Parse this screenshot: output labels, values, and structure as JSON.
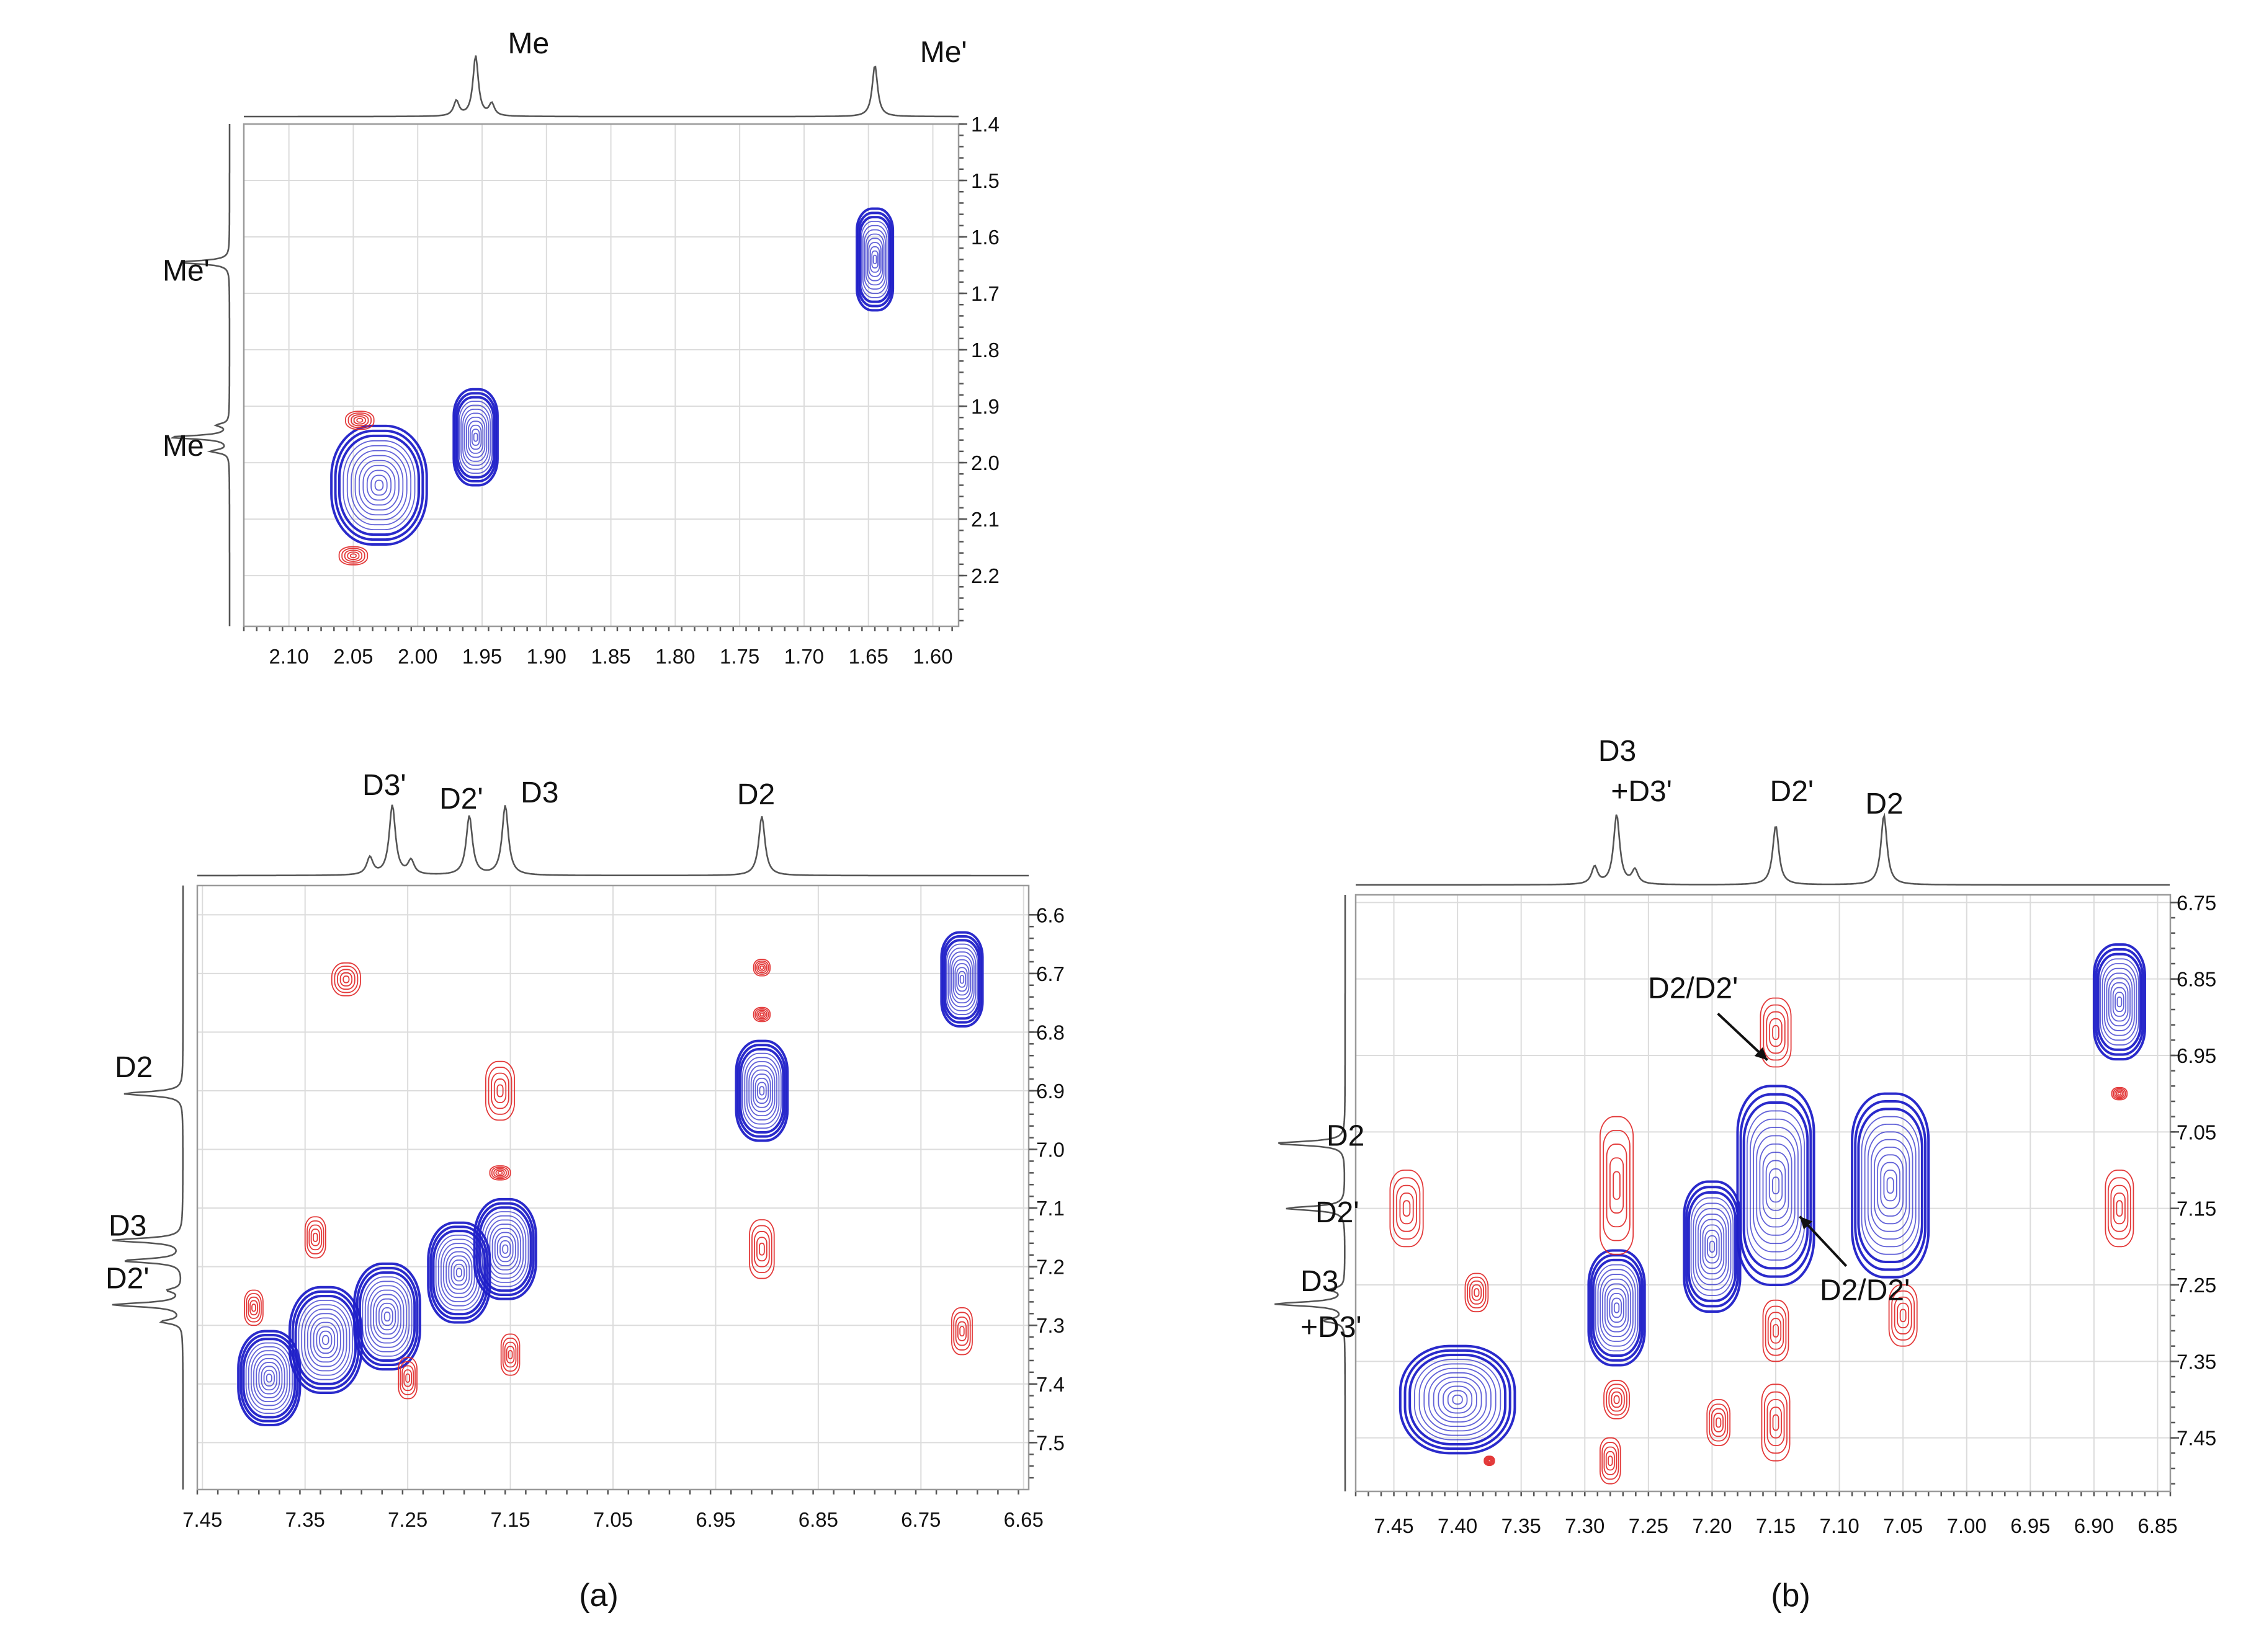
{
  "colors": {
    "positive": "#1f1fc8",
    "negative": "#e02424",
    "trace": "#555555",
    "grid": "#dcdcdc"
  },
  "chart_data": [
    {
      "id": "top",
      "type": "heatmap",
      "subtype": "2D NMR contour map (EXSY/NOESY)",
      "x": {
        "range": [
          2.135,
          1.58
        ],
        "ticks": [
          2.1,
          2.05,
          2.0,
          1.95,
          1.9,
          1.85,
          1.8,
          1.75,
          1.7,
          1.65,
          1.6
        ],
        "tick_labels": [
          "2.10",
          "2.05",
          "2.00",
          "1.95",
          "1.90",
          "1.85",
          "1.80",
          "1.75",
          "1.70",
          "1.65",
          "1.60"
        ]
      },
      "y": {
        "range": [
          1.4,
          2.29
        ],
        "ticks": [
          1.4,
          1.5,
          1.6,
          1.7,
          1.8,
          1.9,
          2.0,
          2.1,
          2.2
        ],
        "tick_labels": [
          "1.4",
          "1.5",
          "1.6",
          "1.7",
          "1.8",
          "1.9",
          "2.0",
          "2.1",
          "2.2"
        ]
      },
      "projection_peaks": [
        {
          "label": "Me",
          "shift": 1.955
        },
        {
          "label": "Me'",
          "shift": 1.645
        }
      ],
      "top_annotations": [
        {
          "text": "Me",
          "x": 1.93
        },
        {
          "text": "Me'",
          "x": 1.61
        }
      ],
      "left_annotations": [
        {
          "text": "Me'",
          "y": 1.66
        },
        {
          "text": "Me",
          "y": 1.97
        }
      ],
      "contours": [
        {
          "sign": "positive",
          "x": 1.645,
          "y": 1.64,
          "rx": 0.014,
          "ry": 0.09
        },
        {
          "sign": "positive",
          "x": 1.955,
          "y": 1.955,
          "rx": 0.017,
          "ry": 0.085
        },
        {
          "sign": "positive",
          "x": 2.03,
          "y": 2.04,
          "rx": 0.037,
          "ry": 0.105
        },
        {
          "sign": "negative",
          "x": 2.045,
          "y": 1.925,
          "rx": 0.011,
          "ry": 0.016
        },
        {
          "sign": "negative",
          "x": 2.05,
          "y": 2.165,
          "rx": 0.011,
          "ry": 0.016
        }
      ]
    },
    {
      "id": "a",
      "caption": "(a)",
      "type": "heatmap",
      "subtype": "2D NMR contour map (EXSY/NOESY)",
      "x": {
        "range": [
          7.455,
          6.645
        ],
        "ticks": [
          7.45,
          7.35,
          7.25,
          7.15,
          7.05,
          6.95,
          6.85,
          6.75,
          6.65
        ],
        "tick_labels": [
          "7.45",
          "7.35",
          "7.25",
          "7.15",
          "7.05",
          "6.95",
          "6.85",
          "6.75",
          "6.65"
        ]
      },
      "y": {
        "range": [
          6.55,
          7.58
        ],
        "ticks": [
          6.6,
          6.7,
          6.8,
          6.9,
          7.0,
          7.1,
          7.2,
          7.3,
          7.4,
          7.5
        ],
        "tick_labels": [
          "6.6",
          "6.7",
          "6.8",
          "6.9",
          "7.0",
          "7.1",
          "7.2",
          "7.3",
          "7.4",
          "7.5"
        ]
      },
      "projection_peaks": [
        {
          "label": "D3'",
          "shift": 7.265
        },
        {
          "label": "D2'",
          "shift": 7.19
        },
        {
          "label": "D3",
          "shift": 7.155
        },
        {
          "label": "D2",
          "shift": 6.905
        }
      ],
      "top_annotations": [
        {
          "text": "D3'",
          "x": 7.27
        },
        {
          "text": "D2'",
          "x": 7.195
        },
        {
          "text": "D3",
          "x": 7.14
        },
        {
          "text": "D2",
          "x": 6.905
        }
      ],
      "left_annotations": [
        {
          "text": "D2",
          "y": 6.86
        },
        {
          "text": "D3",
          "y": 7.13
        },
        {
          "text": "D2'",
          "y": 7.22
        }
      ],
      "contours": [
        {
          "sign": "positive",
          "x": 6.71,
          "y": 6.71,
          "rx": 0.02,
          "ry": 0.08
        },
        {
          "sign": "positive",
          "x": 6.905,
          "y": 6.9,
          "rx": 0.025,
          "ry": 0.085
        },
        {
          "sign": "positive",
          "x": 7.385,
          "y": 7.39,
          "rx": 0.03,
          "ry": 0.08
        },
        {
          "sign": "positive",
          "x": 7.33,
          "y": 7.325,
          "rx": 0.035,
          "ry": 0.09
        },
        {
          "sign": "positive",
          "x": 7.27,
          "y": 7.285,
          "rx": 0.032,
          "ry": 0.09
        },
        {
          "sign": "positive",
          "x": 7.2,
          "y": 7.21,
          "rx": 0.03,
          "ry": 0.085
        },
        {
          "sign": "positive",
          "x": 7.155,
          "y": 7.17,
          "rx": 0.03,
          "ry": 0.085
        },
        {
          "sign": "negative",
          "x": 7.31,
          "y": 6.71,
          "rx": 0.014,
          "ry": 0.028
        },
        {
          "sign": "negative",
          "x": 7.16,
          "y": 6.9,
          "rx": 0.014,
          "ry": 0.05
        },
        {
          "sign": "negative",
          "x": 6.905,
          "y": 6.69,
          "rx": 0.008,
          "ry": 0.014
        },
        {
          "sign": "negative",
          "x": 6.905,
          "y": 6.77,
          "rx": 0.008,
          "ry": 0.012
        },
        {
          "sign": "negative",
          "x": 7.16,
          "y": 7.04,
          "rx": 0.01,
          "ry": 0.012
        },
        {
          "sign": "negative",
          "x": 7.34,
          "y": 7.15,
          "rx": 0.01,
          "ry": 0.035
        },
        {
          "sign": "negative",
          "x": 7.4,
          "y": 7.27,
          "rx": 0.009,
          "ry": 0.03
        },
        {
          "sign": "negative",
          "x": 7.25,
          "y": 7.39,
          "rx": 0.009,
          "ry": 0.035
        },
        {
          "sign": "negative",
          "x": 7.15,
          "y": 7.35,
          "rx": 0.009,
          "ry": 0.035
        },
        {
          "sign": "negative",
          "x": 6.905,
          "y": 7.17,
          "rx": 0.012,
          "ry": 0.05
        },
        {
          "sign": "negative",
          "x": 6.71,
          "y": 7.31,
          "rx": 0.01,
          "ry": 0.04
        }
      ]
    },
    {
      "id": "b",
      "caption": "(b)",
      "type": "heatmap",
      "subtype": "2D NMR contour map (EXSY/NOESY)",
      "x": {
        "range": [
          7.48,
          6.84
        ],
        "ticks": [
          7.45,
          7.4,
          7.35,
          7.3,
          7.25,
          7.2,
          7.15,
          7.1,
          7.05,
          7.0,
          6.95,
          6.9,
          6.85
        ],
        "tick_labels": [
          "7.45",
          "7.40",
          "7.35",
          "7.30",
          "7.25",
          "7.20",
          "7.15",
          "7.10",
          "7.05",
          "7.00",
          "6.95",
          "6.90",
          "6.85"
        ]
      },
      "y": {
        "range": [
          6.74,
          7.52
        ],
        "ticks": [
          6.75,
          6.85,
          6.95,
          7.05,
          7.15,
          7.25,
          7.35,
          7.45
        ],
        "tick_labels": [
          "6.75",
          "6.85",
          "6.95",
          "7.05",
          "7.15",
          "7.25",
          "7.35",
          "7.45"
        ]
      },
      "projection_peaks": [
        {
          "label": "D3 +D3'",
          "shift": 7.275
        },
        {
          "label": "D2'",
          "shift": 7.15
        },
        {
          "label": "D2",
          "shift": 7.065
        }
      ],
      "top_annotations": [
        {
          "text": "D3",
          "x": 7.27
        },
        {
          "text": "+D3'",
          "x": 7.26
        },
        {
          "text": "D2'",
          "x": 7.14
        },
        {
          "text": "D2",
          "x": 7.065
        }
      ],
      "left_annotations": [
        {
          "text": "D2",
          "y": 7.055
        },
        {
          "text": "D2'",
          "y": 7.155
        },
        {
          "text": "D3",
          "y": 7.245
        },
        {
          "text": "+D3'",
          "y": 7.305
        }
      ],
      "in_plot_annotations": [
        {
          "text": "D2/D2'",
          "x": 7.215,
          "y": 6.875
        },
        {
          "text": "D2/D2'",
          "x": 7.08,
          "y": 7.27
        }
      ],
      "contours": [
        {
          "sign": "positive",
          "x": 6.88,
          "y": 6.88,
          "rx": 0.02,
          "ry": 0.075
        },
        {
          "sign": "positive",
          "x": 7.4,
          "y": 7.4,
          "rx": 0.045,
          "ry": 0.07
        },
        {
          "sign": "positive",
          "x": 7.275,
          "y": 7.28,
          "rx": 0.022,
          "ry": 0.075
        },
        {
          "sign": "positive",
          "x": 7.2,
          "y": 7.2,
          "rx": 0.022,
          "ry": 0.085
        },
        {
          "sign": "positive",
          "x": 7.15,
          "y": 7.12,
          "rx": 0.03,
          "ry": 0.13
        },
        {
          "sign": "positive",
          "x": 7.06,
          "y": 7.12,
          "rx": 0.03,
          "ry": 0.12
        },
        {
          "sign": "negative",
          "x": 7.15,
          "y": 6.92,
          "rx": 0.012,
          "ry": 0.045
        },
        {
          "sign": "negative",
          "x": 7.275,
          "y": 7.12,
          "rx": 0.013,
          "ry": 0.09
        },
        {
          "sign": "negative",
          "x": 7.44,
          "y": 7.15,
          "rx": 0.013,
          "ry": 0.05
        },
        {
          "sign": "negative",
          "x": 7.385,
          "y": 7.26,
          "rx": 0.009,
          "ry": 0.025
        },
        {
          "sign": "negative",
          "x": 7.15,
          "y": 7.31,
          "rx": 0.01,
          "ry": 0.04
        },
        {
          "sign": "negative",
          "x": 7.15,
          "y": 7.43,
          "rx": 0.011,
          "ry": 0.05
        },
        {
          "sign": "negative",
          "x": 7.195,
          "y": 7.43,
          "rx": 0.009,
          "ry": 0.03
        },
        {
          "sign": "negative",
          "x": 7.275,
          "y": 7.4,
          "rx": 0.01,
          "ry": 0.025
        },
        {
          "sign": "negative",
          "x": 7.28,
          "y": 7.48,
          "rx": 0.008,
          "ry": 0.03
        },
        {
          "sign": "negative",
          "x": 7.05,
          "y": 7.29,
          "rx": 0.011,
          "ry": 0.04
        },
        {
          "sign": "negative",
          "x": 6.88,
          "y": 7.15,
          "rx": 0.011,
          "ry": 0.05
        },
        {
          "sign": "negative",
          "x": 6.88,
          "y": 7.0,
          "rx": 0.006,
          "ry": 0.008
        },
        {
          "sign": "negative",
          "x": 7.375,
          "y": 7.48,
          "rx": 0.004,
          "ry": 0.006
        }
      ]
    }
  ]
}
